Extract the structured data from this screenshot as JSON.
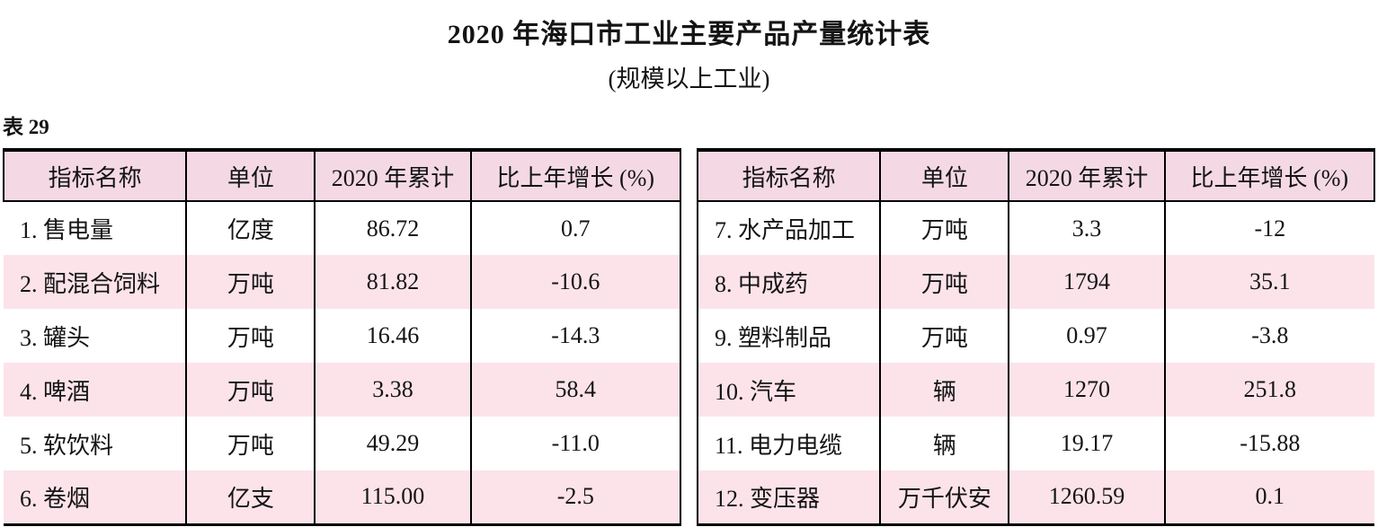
{
  "page": {
    "title": "2020 年海口市工业主要产品产量统计表",
    "subtitle": "(规模以上工业)",
    "table_label": "表 29"
  },
  "colors": {
    "header_bg": "#f4d9e5",
    "alt_row_bg": "#fce3ea",
    "border": "#000000",
    "text": "#141414"
  },
  "tables": [
    {
      "headers": [
        "指标名称",
        "单位",
        "2020 年累计",
        "比上年增长 (%)"
      ],
      "rows": [
        [
          "1. 售电量",
          "亿度",
          "86.72",
          "0.7"
        ],
        [
          "2. 配混合饲料",
          "万吨",
          "81.82",
          "-10.6"
        ],
        [
          "3. 罐头",
          "万吨",
          "16.46",
          "-14.3"
        ],
        [
          "4. 啤酒",
          "万吨",
          "3.38",
          "58.4"
        ],
        [
          "5. 软饮料",
          "万吨",
          "49.29",
          "-11.0"
        ],
        [
          "6. 卷烟",
          "亿支",
          "115.00",
          "-2.5"
        ]
      ]
    },
    {
      "headers": [
        "指标名称",
        "单位",
        "2020 年累计",
        "比上年增长 (%)"
      ],
      "rows": [
        [
          "7. 水产品加工",
          "万吨",
          "3.3",
          "-12"
        ],
        [
          "8. 中成药",
          "万吨",
          "1794",
          "35.1"
        ],
        [
          "9. 塑料制品",
          "万吨",
          "0.97",
          "-3.8"
        ],
        [
          "10. 汽车",
          "辆",
          "1270",
          "251.8"
        ],
        [
          "11. 电力电缆",
          "辆",
          "19.17",
          "-15.88"
        ],
        [
          "12. 变压器",
          "万千伏安",
          "1260.59",
          "0.1"
        ]
      ]
    }
  ]
}
